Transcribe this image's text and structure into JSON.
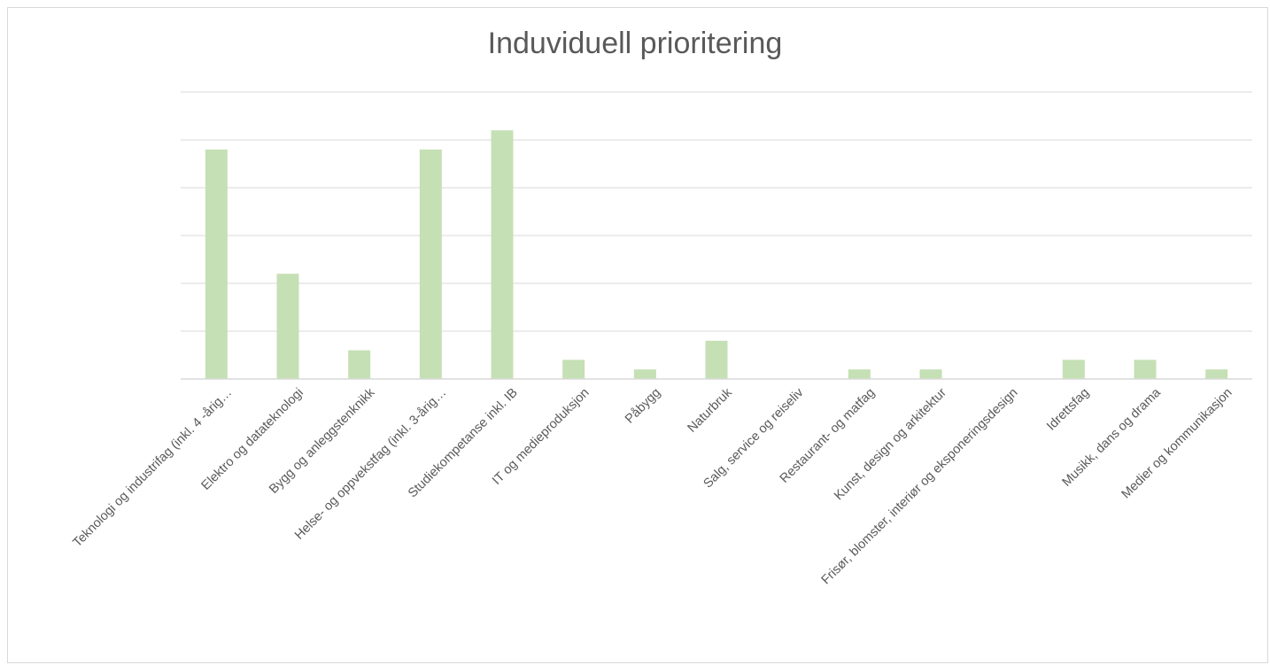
{
  "chart_data": {
    "type": "bar",
    "title": "Induviduell prioritering",
    "xlabel": "",
    "ylabel": "",
    "ylim": [
      0,
      30
    ],
    "grid": true,
    "legend": "none",
    "bar_color": "#c5e0b4",
    "grid_color": "#e6e6e6",
    "categories": [
      "Teknologi og industrifag (inkl. 4 -årig…",
      "Elektro og datateknologi",
      "Bygg og anleggstenknikk",
      "Helse- og oppvekstfag (inkl. 3-årig…",
      "Studiekompetanse inkl. IB",
      "IT og medieproduksjon",
      "Påbygg",
      "Naturbruk",
      "Salg, service og reiseliv",
      "Restaurant- og matfag",
      "Kunst, design og arkitektur",
      "Frisør, blomster, interiør og eksponeringsdesign",
      "Idrettsfag",
      "Musikk, dans og drama",
      "Medier og kommunikasjon"
    ],
    "values": [
      24,
      11,
      3,
      24,
      26,
      2,
      1,
      4,
      0,
      1,
      1,
      0,
      2,
      2,
      1
    ]
  }
}
